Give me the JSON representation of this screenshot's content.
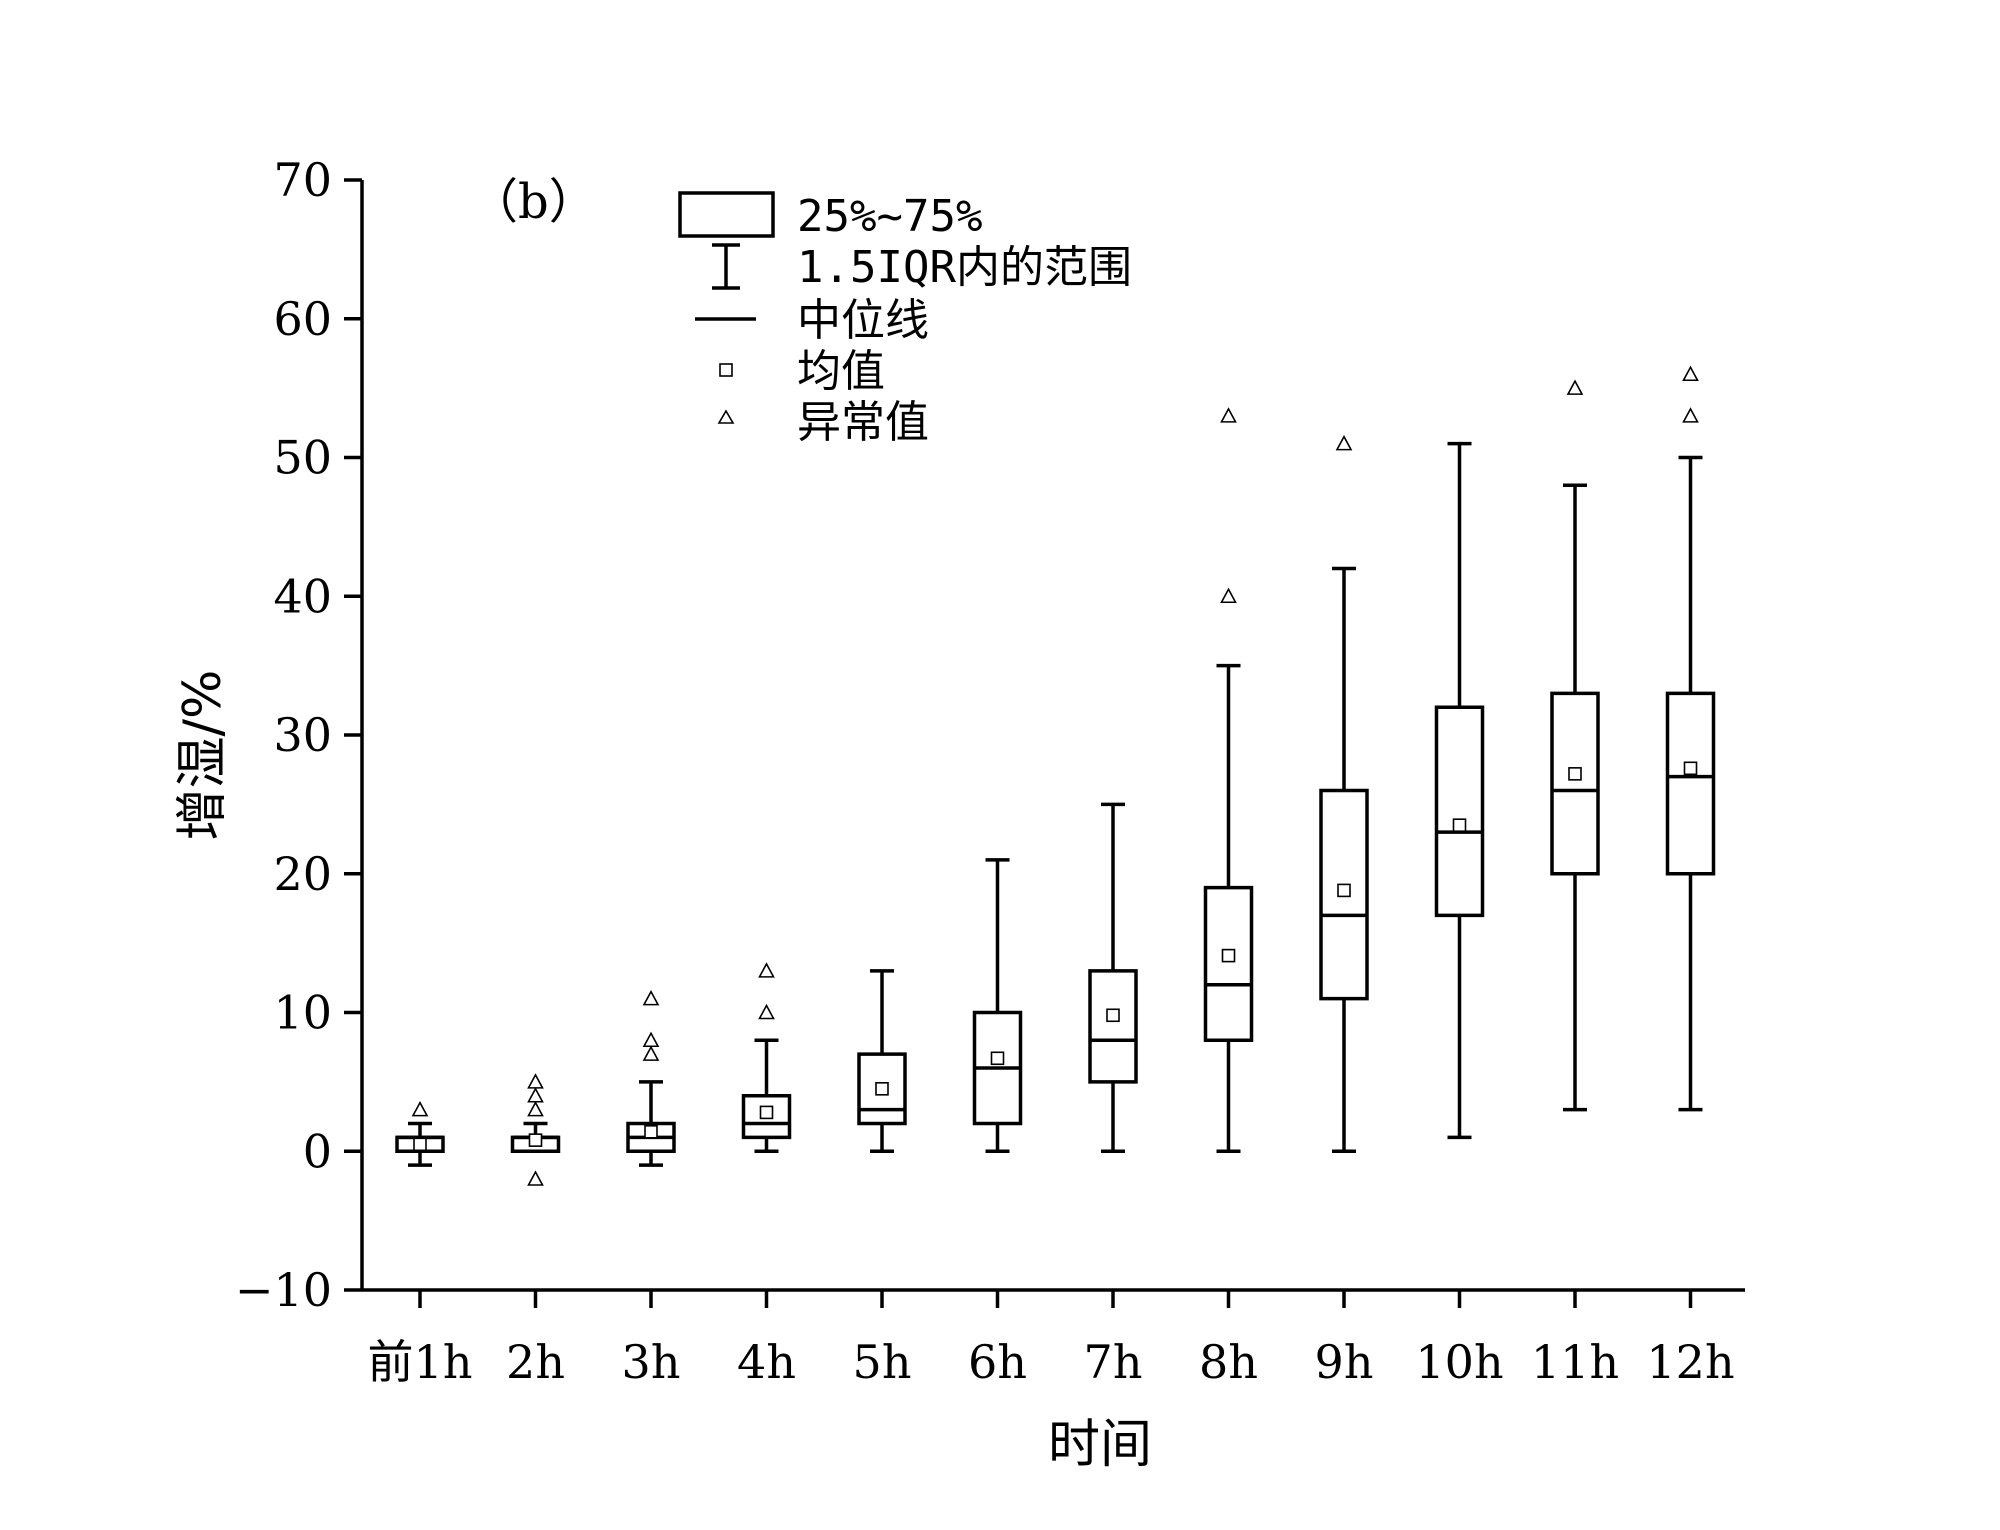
{
  "chart_data": {
    "type": "box",
    "panel_label": "（b）",
    "xlabel": "时间",
    "ylabel": "增湿/%",
    "ylim": [
      -10,
      70
    ],
    "yticks": [
      -10,
      0,
      10,
      20,
      30,
      40,
      50,
      60,
      70
    ],
    "categories": [
      "前1h",
      "2h",
      "3h",
      "4h",
      "5h",
      "6h",
      "7h",
      "8h",
      "9h",
      "10h",
      "11h",
      "12h"
    ],
    "series": [
      {
        "category": "前1h",
        "whisker_low": -1,
        "q1": 0,
        "median": 1,
        "q3": 1,
        "whisker_high": 2,
        "mean": 0.5,
        "outliers": [
          3
        ]
      },
      {
        "category": "2h",
        "whisker_low": 0,
        "q1": 0,
        "median": 1,
        "q3": 1,
        "whisker_high": 2,
        "mean": 0.8,
        "outliers": [
          -2,
          3,
          4,
          5
        ]
      },
      {
        "category": "3h",
        "whisker_low": -1,
        "q1": 0,
        "median": 1,
        "q3": 2,
        "whisker_high": 5,
        "mean": 1.4,
        "outliers": [
          7,
          8,
          11
        ]
      },
      {
        "category": "4h",
        "whisker_low": 0,
        "q1": 1,
        "median": 2,
        "q3": 4,
        "whisker_high": 8,
        "mean": 2.8,
        "outliers": [
          10,
          13
        ]
      },
      {
        "category": "5h",
        "whisker_low": 0,
        "q1": 2,
        "median": 3,
        "q3": 7,
        "whisker_high": 13,
        "mean": 4.5,
        "outliers": []
      },
      {
        "category": "6h",
        "whisker_low": 0,
        "q1": 2,
        "median": 6,
        "q3": 10,
        "whisker_high": 21,
        "mean": 6.7,
        "outliers": []
      },
      {
        "category": "7h",
        "whisker_low": 0,
        "q1": 5,
        "median": 8,
        "q3": 13,
        "whisker_high": 25,
        "mean": 9.8,
        "outliers": []
      },
      {
        "category": "8h",
        "whisker_low": 0,
        "q1": 8,
        "median": 12,
        "q3": 19,
        "whisker_high": 35,
        "mean": 14.1,
        "outliers": [
          40,
          53
        ]
      },
      {
        "category": "9h",
        "whisker_low": 0,
        "q1": 11,
        "median": 17,
        "q3": 26,
        "whisker_high": 42,
        "mean": 18.8,
        "outliers": [
          51
        ]
      },
      {
        "category": "10h",
        "whisker_low": 1,
        "q1": 17,
        "median": 23,
        "q3": 32,
        "whisker_high": 51,
        "mean": 23.5,
        "outliers": []
      },
      {
        "category": "11h",
        "whisker_low": 3,
        "q1": 20,
        "median": 26,
        "q3": 33,
        "whisker_high": 48,
        "mean": 27.2,
        "outliers": [
          55
        ]
      },
      {
        "category": "12h",
        "whisker_low": 3,
        "q1": 20,
        "median": 27,
        "q3": 33,
        "whisker_high": 50,
        "mean": 27.6,
        "outliers": [
          53,
          56
        ]
      }
    ],
    "legend": {
      "position": "top-center",
      "items": [
        {
          "symbol": "box",
          "label": "25%~75%"
        },
        {
          "symbol": "whisker",
          "label": "1.5IQR内的范围"
        },
        {
          "symbol": "median-line",
          "label": "中位线"
        },
        {
          "symbol": "square",
          "label": "均值"
        },
        {
          "symbol": "triangle",
          "label": "异常值"
        }
      ]
    }
  }
}
